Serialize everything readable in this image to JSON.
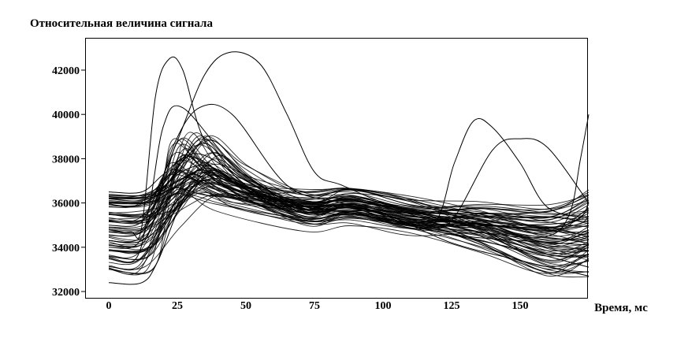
{
  "chart_data": {
    "type": "line",
    "title": "Относительная величина сигнала",
    "xlabel": "Время, мс",
    "ylabel": "",
    "xlim": [
      -8,
      175
    ],
    "ylim": [
      32000,
      43000
    ],
    "x_ticks": [
      0,
      25,
      50,
      75,
      100,
      125,
      150
    ],
    "y_ticks": [
      32000,
      34000,
      36000,
      38000,
      40000,
      42000
    ],
    "grid": false,
    "legend": "none",
    "line_color": "#000000",
    "series_count": 80,
    "series_style": "Many overlapping black signal traces: flat baseline 33000–36500 until ~12 ms, rapid rise to a peak of 36000–42800 at 20–45 ms, decline to a plateau near 35000–36000 around 75–100 ms, then gradual drift to 33000–35500; a few traces rise again to 38000–40000 after 120 ms and at the right edge.",
    "representative_series": [
      {
        "x": [
          0,
          8,
          12,
          17,
          22,
          27,
          35,
          50,
          65,
          85,
          105,
          125,
          150,
          170,
          175
        ],
        "y": [
          34700,
          34700,
          34900,
          40800,
          42500,
          42000,
          38800,
          36800,
          35700,
          35900,
          35400,
          35000,
          35000,
          35200,
          36000
        ]
      },
      {
        "x": [
          0,
          10,
          15,
          25,
          35,
          44,
          55,
          65,
          75,
          85,
          105,
          130,
          150,
          170,
          175
        ],
        "y": [
          35000,
          35000,
          35800,
          38800,
          41800,
          42800,
          42300,
          40000,
          37400,
          36800,
          35800,
          35100,
          34900,
          35000,
          35400
        ]
      },
      {
        "x": [
          0,
          10,
          15,
          20,
          27,
          45,
          65,
          80,
          90,
          110,
          130,
          150,
          175
        ],
        "y": [
          33500,
          33500,
          36000,
          39500,
          40300,
          37800,
          36100,
          35700,
          35900,
          35000,
          34500,
          34300,
          34100
        ]
      },
      {
        "x": [
          0,
          12,
          18,
          30,
          50,
          70,
          85,
          100,
          118,
          126,
          133,
          140,
          150,
          160,
          175
        ],
        "y": [
          34300,
          34300,
          35600,
          38200,
          37000,
          35600,
          35900,
          35500,
          35000,
          37800,
          39700,
          39400,
          37800,
          35800,
          35300
        ]
      },
      {
        "x": [
          0,
          12,
          20,
          35,
          55,
          75,
          95,
          115,
          125,
          140,
          150,
          160,
          175
        ],
        "y": [
          34800,
          34800,
          36700,
          37700,
          36300,
          35600,
          35400,
          35000,
          35200,
          38400,
          38900,
          38500,
          36000
        ]
      },
      {
        "x": [
          0,
          10,
          16,
          24,
          33,
          45,
          65,
          85,
          110,
          140,
          160,
          168,
          172,
          175
        ],
        "y": [
          34000,
          34100,
          35700,
          38700,
          40300,
          40000,
          36800,
          36000,
          35300,
          34600,
          34500,
          35500,
          38000,
          40000
        ]
      },
      {
        "x": [
          0,
          12,
          18,
          28,
          40,
          60,
          80,
          100,
          125,
          150,
          175
        ],
        "y": [
          32400,
          32400,
          33400,
          36300,
          37100,
          36200,
          35700,
          35500,
          34200,
          33400,
          32700
        ]
      },
      {
        "x": [
          0,
          12,
          20,
          30,
          45,
          60,
          75,
          95,
          120,
          150,
          175
        ],
        "y": [
          36500,
          36500,
          37300,
          38100,
          37000,
          35900,
          35800,
          35400,
          34700,
          33900,
          33100
        ]
      }
    ]
  }
}
